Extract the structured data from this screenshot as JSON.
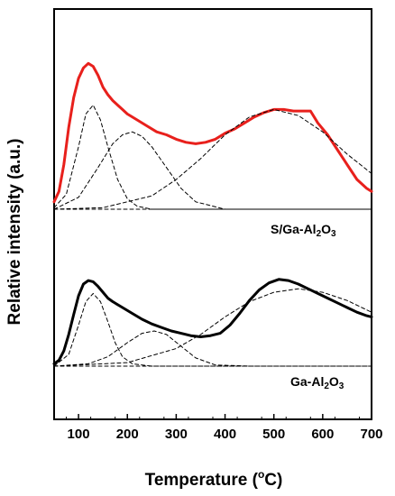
{
  "chart_data": {
    "type": "line",
    "xlabel_prefix": "Temperature (",
    "xlabel_unit_sup": "o",
    "xlabel_unit": "C)",
    "ylabel": "Relative intensity (a.u.)",
    "xlim": [
      50,
      700
    ],
    "xticks": [
      "100",
      "200",
      "300",
      "400",
      "500",
      "600",
      "700"
    ],
    "yticks_shown": false,
    "grid": false,
    "labels": [
      {
        "text_main": "S/Ga-Al",
        "sub1": "2",
        "mid": "O",
        "sub2": "3"
      },
      {
        "text_main": "Ga-Al",
        "sub1": "2",
        "mid": "O",
        "sub2": "3"
      }
    ],
    "series": [
      {
        "name": "S/Ga-Al2O3",
        "style": "measured",
        "color": "#e8201c",
        "x": [
          50,
          60,
          70,
          80,
          90,
          100,
          110,
          120,
          130,
          140,
          150,
          160,
          170,
          180,
          190,
          200,
          220,
          240,
          260,
          280,
          300,
          320,
          340,
          360,
          380,
          400,
          420,
          440,
          460,
          480,
          500,
          520,
          540,
          560,
          575,
          590,
          610,
          630,
          650,
          670,
          690,
          700
        ],
        "y": [
          0.05,
          0.12,
          0.3,
          0.55,
          0.75,
          0.88,
          0.95,
          0.98,
          0.96,
          0.9,
          0.82,
          0.77,
          0.73,
          0.7,
          0.67,
          0.64,
          0.6,
          0.56,
          0.52,
          0.5,
          0.47,
          0.45,
          0.44,
          0.45,
          0.47,
          0.51,
          0.54,
          0.58,
          0.62,
          0.65,
          0.67,
          0.67,
          0.66,
          0.66,
          0.66,
          0.58,
          0.5,
          0.4,
          0.3,
          0.2,
          0.14,
          0.12
        ]
      },
      {
        "style": "fit",
        "x": [
          50,
          75,
          100,
          115,
          130,
          145,
          160,
          180,
          200,
          220,
          250,
          700
        ],
        "y": [
          0.01,
          0.1,
          0.42,
          0.64,
          0.7,
          0.6,
          0.42,
          0.2,
          0.07,
          0.02,
          0.0,
          0.0
        ]
      },
      {
        "style": "fit",
        "x": [
          50,
          100,
          140,
          170,
          190,
          210,
          230,
          250,
          280,
          310,
          340,
          400,
          700
        ],
        "y": [
          0.0,
          0.08,
          0.28,
          0.44,
          0.5,
          0.52,
          0.49,
          0.42,
          0.28,
          0.14,
          0.05,
          0.0,
          0.0
        ]
      },
      {
        "style": "fit",
        "x": [
          50,
          150,
          250,
          300,
          350,
          400,
          450,
          500,
          550,
          600,
          650,
          700
        ],
        "y": [
          0.0,
          0.01,
          0.09,
          0.2,
          0.34,
          0.5,
          0.62,
          0.67,
          0.63,
          0.52,
          0.37,
          0.24
        ]
      },
      {
        "style": "baseline",
        "x": [
          50,
          700
        ],
        "y": [
          0.0,
          0.0
        ]
      },
      {
        "name": "Ga-Al2O3",
        "style": "measured",
        "color": "#000000",
        "x": [
          50,
          60,
          70,
          80,
          90,
          100,
          110,
          120,
          130,
          140,
          150,
          160,
          170,
          190,
          210,
          230,
          250,
          270,
          290,
          310,
          330,
          350,
          370,
          390,
          410,
          430,
          450,
          470,
          490,
          510,
          530,
          550,
          570,
          590,
          610,
          630,
          650,
          670,
          690,
          700
        ],
        "y": [
          0.02,
          0.05,
          0.13,
          0.27,
          0.44,
          0.6,
          0.7,
          0.73,
          0.72,
          0.68,
          0.63,
          0.58,
          0.55,
          0.5,
          0.45,
          0.4,
          0.36,
          0.33,
          0.3,
          0.28,
          0.26,
          0.25,
          0.26,
          0.28,
          0.35,
          0.45,
          0.56,
          0.65,
          0.71,
          0.74,
          0.73,
          0.7,
          0.66,
          0.62,
          0.58,
          0.54,
          0.5,
          0.46,
          0.43,
          0.42
        ]
      },
      {
        "style": "fit",
        "x": [
          50,
          80,
          100,
          115,
          130,
          145,
          160,
          175,
          190,
          210,
          250,
          700
        ],
        "y": [
          0.0,
          0.1,
          0.35,
          0.55,
          0.62,
          0.55,
          0.38,
          0.2,
          0.08,
          0.02,
          0.0,
          0.0
        ]
      },
      {
        "style": "fit",
        "x": [
          50,
          120,
          160,
          200,
          230,
          255,
          280,
          310,
          340,
          380,
          450,
          700
        ],
        "y": [
          0.0,
          0.02,
          0.08,
          0.2,
          0.28,
          0.3,
          0.27,
          0.17,
          0.07,
          0.01,
          0.0,
          0.0
        ]
      },
      {
        "style": "fit",
        "x": [
          50,
          200,
          300,
          350,
          400,
          450,
          500,
          550,
          600,
          650,
          700
        ],
        "y": [
          0.0,
          0.03,
          0.15,
          0.27,
          0.42,
          0.55,
          0.63,
          0.66,
          0.63,
          0.56,
          0.46
        ]
      },
      {
        "style": "baseline",
        "x": [
          50,
          700
        ],
        "y": [
          0.0,
          0.0
        ]
      }
    ]
  }
}
